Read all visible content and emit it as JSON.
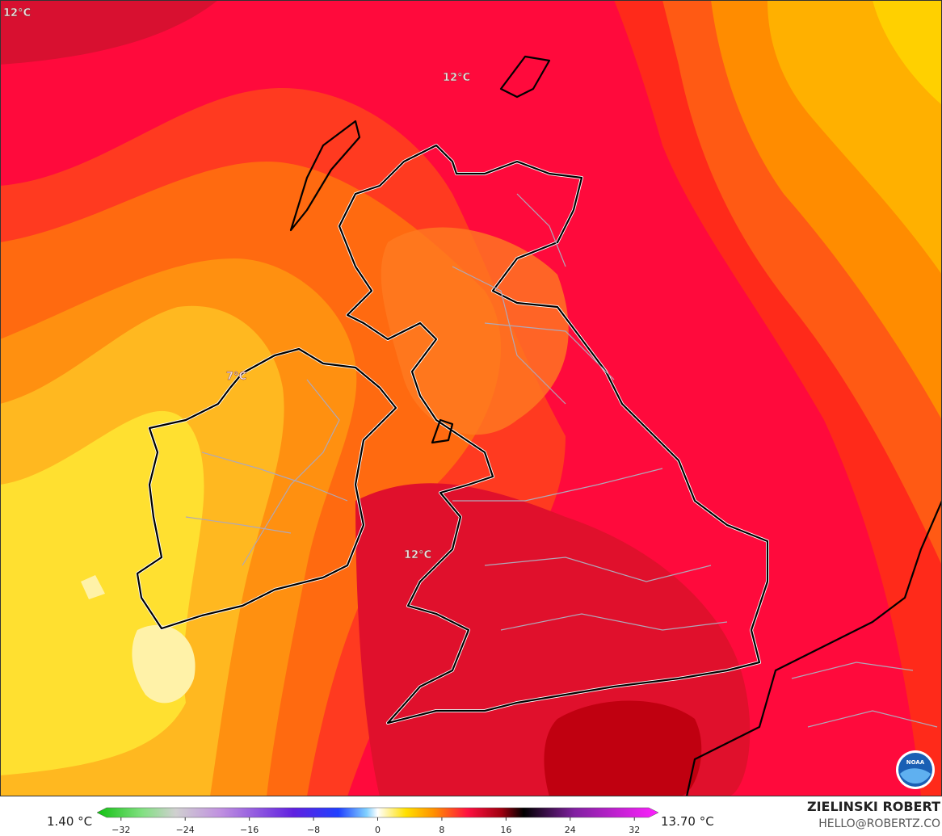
{
  "map": {
    "labels": [
      {
        "text": "12°C"
      },
      {
        "text": "12°C"
      },
      {
        "text": "7°C"
      },
      {
        "text": "12°C"
      }
    ]
  },
  "colorbar": {
    "min_label": "1.40 °C",
    "max_label": "13.70 °C",
    "lim": [
      -35,
      35
    ],
    "ticks": [
      {
        "value": -32,
        "label": "−32"
      },
      {
        "value": -24,
        "label": "−24"
      },
      {
        "value": -16,
        "label": "−16"
      },
      {
        "value": -8,
        "label": "−8"
      },
      0,
      8,
      16,
      24,
      32
    ]
  },
  "credits": {
    "author": "ZIELINSKI ROBERT",
    "contact": "HELLO@ROBERTZ.CO"
  }
}
